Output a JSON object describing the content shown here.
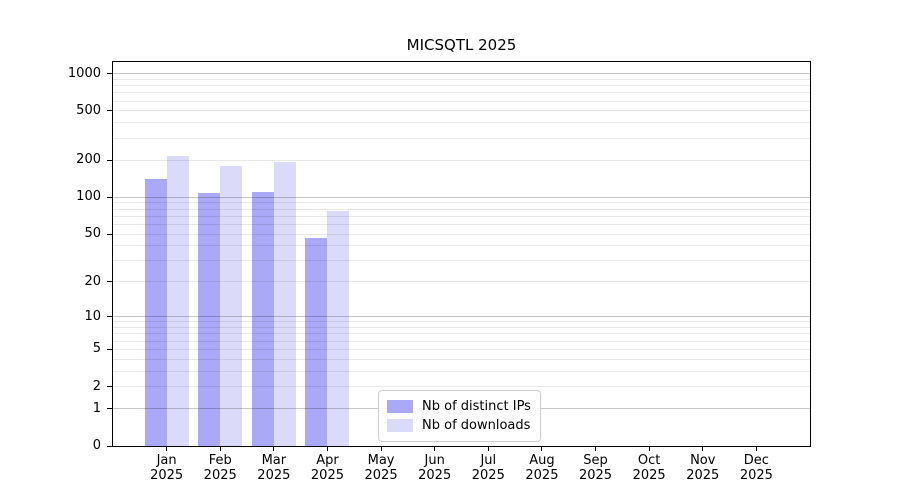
{
  "figure": {
    "background_color": "#ffffff",
    "axes_color": "#000000"
  },
  "chart_data": {
    "type": "bar",
    "title": "MICSQTL 2025",
    "xlabel": "",
    "ylabel": "",
    "yscale": "log10(1+value), zero at baseline",
    "ylim": [
      0,
      1221
    ],
    "grid": "horizontal",
    "legend_position": "inside-bottom-center",
    "x_categories": [
      {
        "month": "Jan",
        "year": "2025"
      },
      {
        "month": "Feb",
        "year": "2025"
      },
      {
        "month": "Mar",
        "year": "2025"
      },
      {
        "month": "Apr",
        "year": "2025"
      },
      {
        "month": "May",
        "year": "2025"
      },
      {
        "month": "Jun",
        "year": "2025"
      },
      {
        "month": "Jul",
        "year": "2025"
      },
      {
        "month": "Aug",
        "year": "2025"
      },
      {
        "month": "Sep",
        "year": "2025"
      },
      {
        "month": "Oct",
        "year": "2025"
      },
      {
        "month": "Nov",
        "year": "2025"
      },
      {
        "month": "Dec",
        "year": "2025"
      }
    ],
    "series": [
      {
        "name": "Nb of distinct IPs",
        "color": "#a9a9f7",
        "values": [
          141,
          108,
          111,
          46,
          0,
          0,
          0,
          0,
          0,
          0,
          0,
          0
        ]
      },
      {
        "name": "Nb of downloads",
        "color": "#dbdbf9",
        "values": [
          217,
          178,
          195,
          78,
          0,
          0,
          0,
          0,
          0,
          0,
          0,
          0
        ]
      }
    ],
    "y_ticks": [
      0,
      1,
      2,
      5,
      10,
      20,
      50,
      100,
      200,
      500,
      1000
    ],
    "y_major_gridlines": [
      1,
      10,
      100,
      1000
    ],
    "y_minor_gridlines": [
      2,
      3,
      4,
      5,
      6,
      7,
      8,
      9,
      20,
      30,
      40,
      50,
      60,
      70,
      80,
      90,
      200,
      300,
      400,
      500,
      600,
      700,
      800,
      900
    ],
    "grid_minor_color": "rgba(0,0,0,0.09)",
    "grid_major_color": "rgba(0,0,0,0.22)"
  }
}
